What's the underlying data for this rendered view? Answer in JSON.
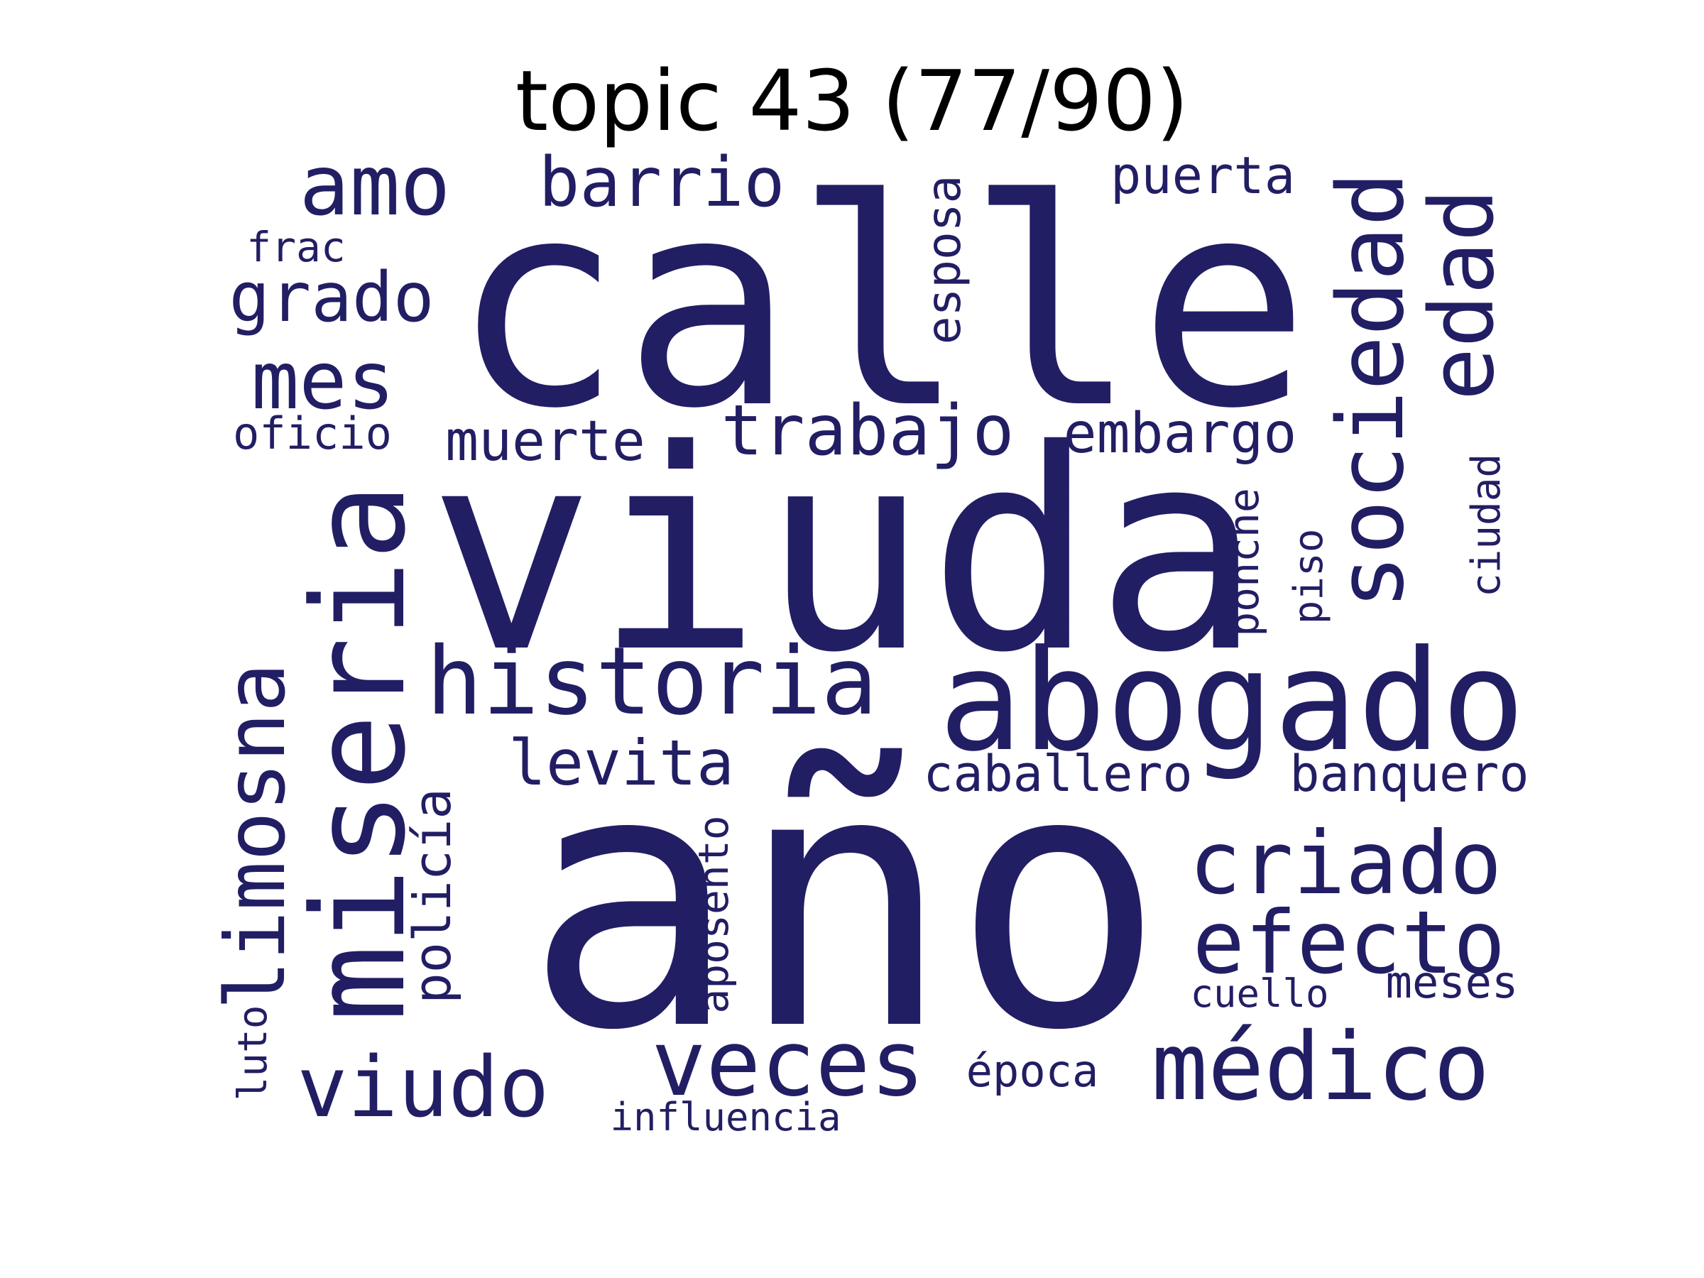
{
  "title": "topic 43 (77/90)",
  "colors": {
    "background": "#ffffff",
    "title": "#000000",
    "word": "#221e64"
  },
  "words": [
    "calle",
    "viuda",
    "año",
    "abogado",
    "miseria",
    "historia",
    "sociedad",
    "médico",
    "efecto",
    "criado",
    "veces",
    "edad",
    "limosna",
    "viudo",
    "mes",
    "amo",
    "trabajo",
    "grado",
    "barrio",
    "levita",
    "embargo",
    "muerte",
    "banquero",
    "caballero",
    "policía",
    "puerta",
    "esposa",
    "oficio",
    "época",
    "meses",
    "aposento",
    "ponche",
    "frac",
    "ciudad",
    "piso",
    "cuello",
    "luto",
    "influencia"
  ]
}
